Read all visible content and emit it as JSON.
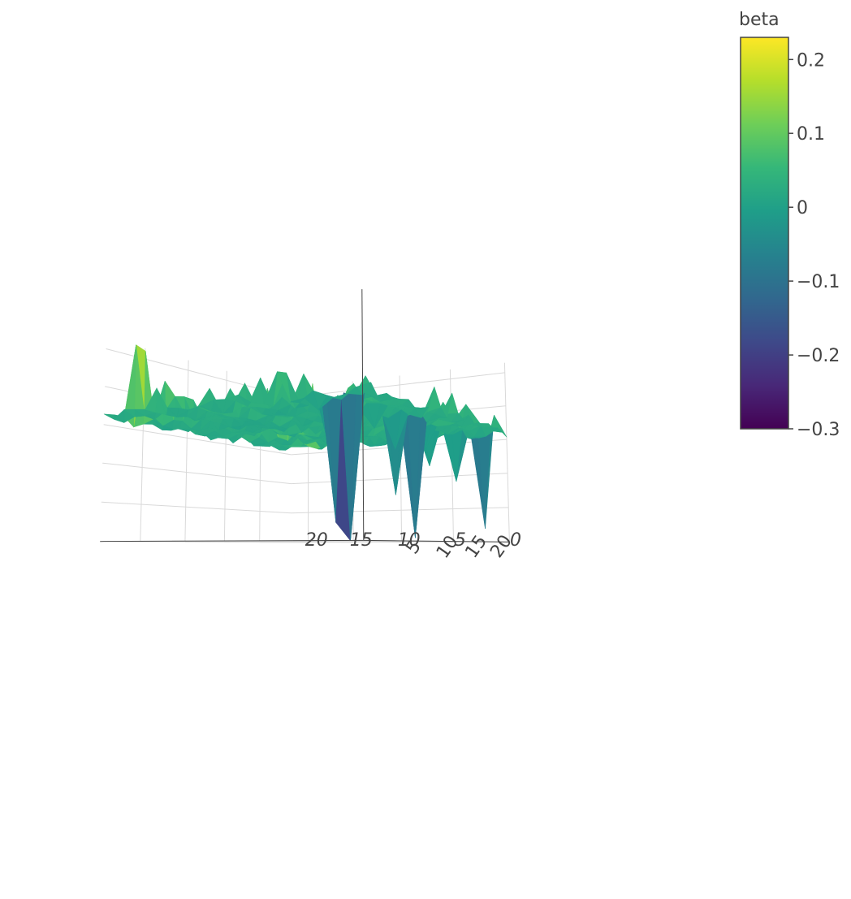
{
  "chart_data": {
    "type": "surface",
    "title": "",
    "x_ticks": [
      5,
      10,
      15,
      20
    ],
    "y_ticks": [
      0,
      5,
      10,
      15,
      20
    ],
    "x_range": [
      1,
      25
    ],
    "y_range": [
      0,
      22
    ],
    "z_range": [
      -0.3,
      0.23
    ],
    "colorscale": "viridis",
    "colorscale_stops": [
      "#440154",
      "#482878",
      "#3e4989",
      "#31688e",
      "#26828e",
      "#1f9e89",
      "#35b779",
      "#6ece58",
      "#b5de2b",
      "#fde725"
    ],
    "colorbar": {
      "title": "beta",
      "tick_values": [
        0.2,
        0.1,
        0,
        -0.1,
        -0.2,
        -0.3
      ],
      "tick_labels": [
        "0.2",
        "0.1",
        "0",
        "−0.1",
        "−0.2",
        "−0.3"
      ]
    },
    "baseline": 0.02,
    "peaks": [
      {
        "x": 3,
        "y": 21,
        "z": 0.22
      },
      {
        "x": 4,
        "y": 21,
        "z": 0.21
      },
      {
        "x": 4,
        "y": 19,
        "z": 0.12
      },
      {
        "x": 5,
        "y": 18,
        "z": 0.08
      },
      {
        "x": 12,
        "y": 15,
        "z": 0.11
      },
      {
        "x": 14,
        "y": 17,
        "z": 0.15
      },
      {
        "x": 15,
        "y": 16,
        "z": 0.19
      },
      {
        "x": 16,
        "y": 17,
        "z": 0.2
      },
      {
        "x": 17,
        "y": 16,
        "z": 0.15
      },
      {
        "x": 15,
        "y": 14,
        "z": 0.1
      },
      {
        "x": 13,
        "y": 14,
        "z": 0.08
      },
      {
        "x": 24,
        "y": 19,
        "z": 0.23
      },
      {
        "x": 24,
        "y": 17,
        "z": 0.16
      },
      {
        "x": 23,
        "y": 16,
        "z": 0.1
      },
      {
        "x": 22,
        "y": 15,
        "z": 0.07
      },
      {
        "x": 2,
        "y": 6,
        "z": 0.08
      },
      {
        "x": 4,
        "y": 6,
        "z": 0.09
      },
      {
        "x": 3,
        "y": 3,
        "z": -0.26
      },
      {
        "x": 3,
        "y": 2,
        "z": -0.3
      },
      {
        "x": 4,
        "y": 4,
        "z": -0.1
      },
      {
        "x": 14,
        "y": 3,
        "z": -0.29
      },
      {
        "x": 13,
        "y": 4,
        "z": -0.18
      },
      {
        "x": 11,
        "y": 3,
        "z": -0.07
      },
      {
        "x": 25,
        "y": 2,
        "z": -0.26
      },
      {
        "x": 24,
        "y": 4,
        "z": -0.12
      },
      {
        "x": 21,
        "y": 5,
        "z": -0.08
      },
      {
        "x": 1,
        "y": 3,
        "z": -0.02
      },
      {
        "x": 8,
        "y": 3,
        "z": -0.03
      },
      {
        "x": 18,
        "y": 4,
        "z": -0.05
      }
    ]
  }
}
